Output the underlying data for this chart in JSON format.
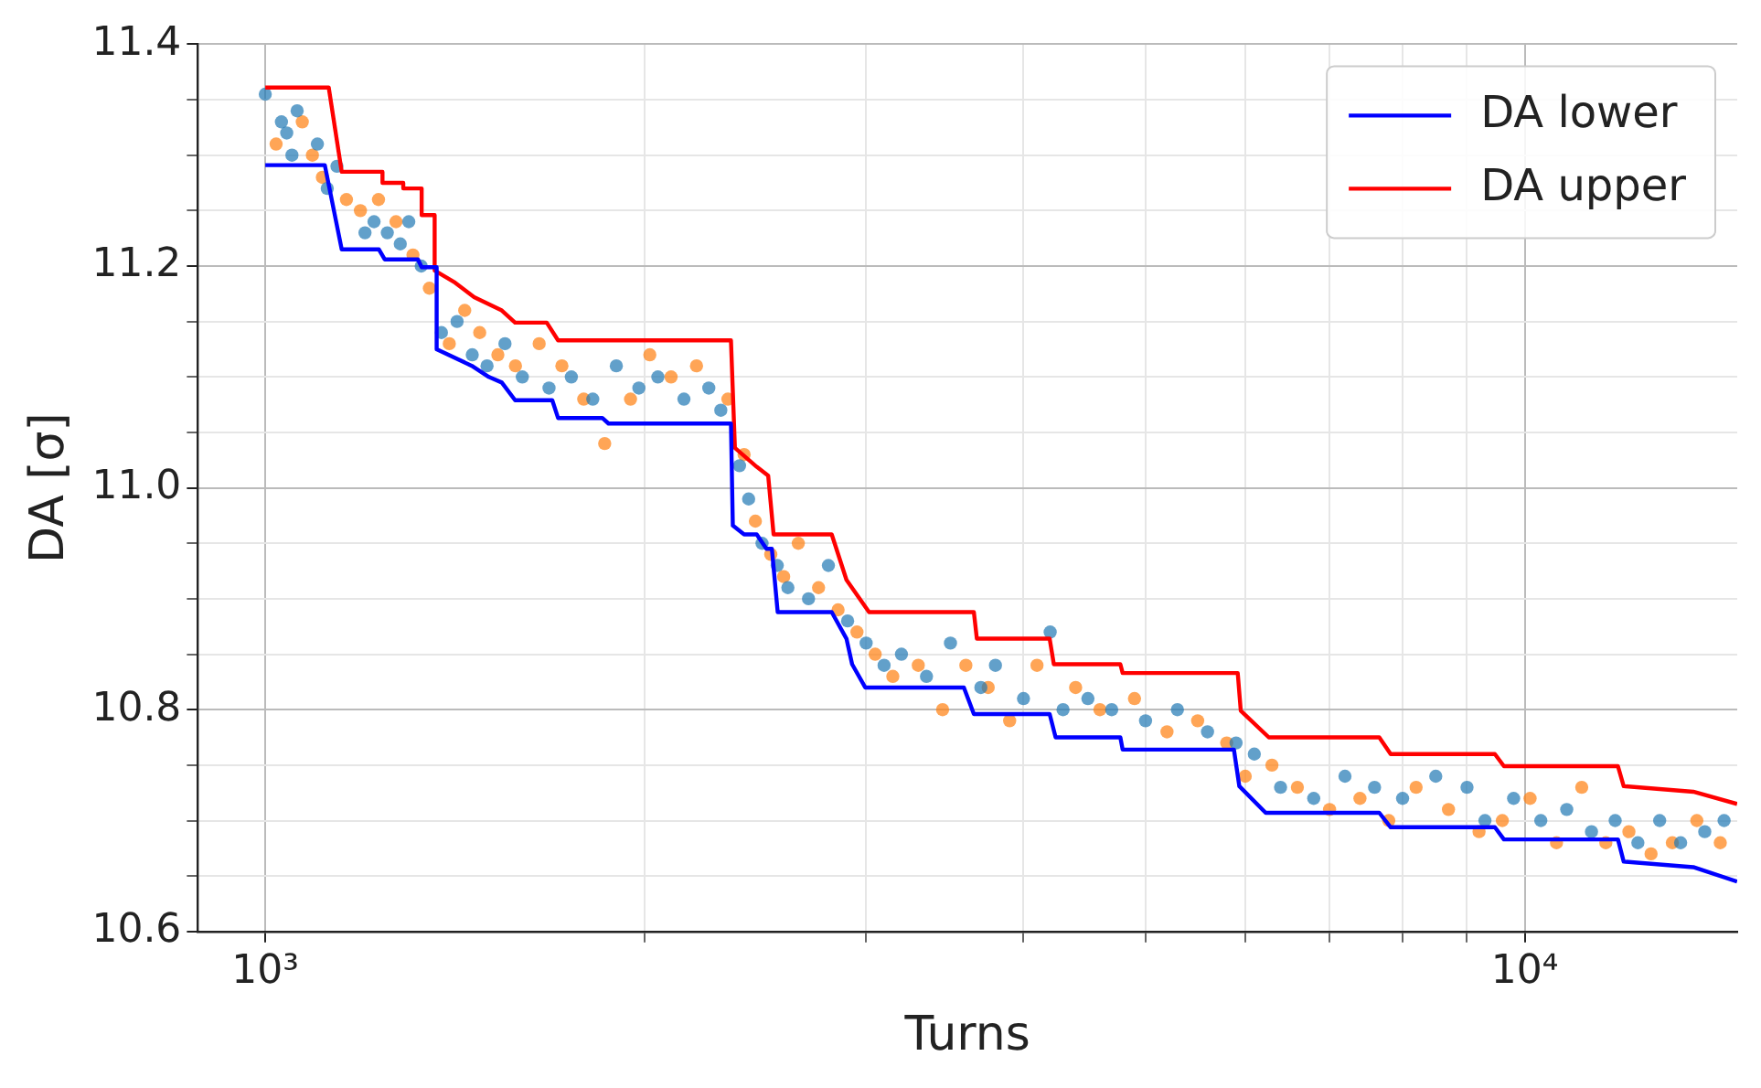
{
  "chart_data": {
    "type": "line",
    "xlabel": "Turns",
    "ylabel": "DA [σ]",
    "xlim": [
      884,
      14750
    ],
    "ylim": [
      10.6,
      11.4
    ],
    "xticks": [
      {
        "value": 1000,
        "label": "10³"
      },
      {
        "value": 2000,
        "label": null
      },
      {
        "value": 3000,
        "label": null
      },
      {
        "value": 4000,
        "label": null
      },
      {
        "value": 5000,
        "label": null
      },
      {
        "value": 6000,
        "label": null
      },
      {
        "value": 7000,
        "label": null
      },
      {
        "value": 8000,
        "label": null
      },
      {
        "value": 9000,
        "label": null
      },
      {
        "value": 10000,
        "label": "10⁴"
      }
    ],
    "yticks": [
      {
        "value": 10.6,
        "label": "10.6"
      },
      {
        "value": 10.65,
        "label": null
      },
      {
        "value": 10.7,
        "label": null
      },
      {
        "value": 10.75,
        "label": null
      },
      {
        "value": 10.8,
        "label": "10.8"
      },
      {
        "value": 10.85,
        "label": null
      },
      {
        "value": 10.9,
        "label": null
      },
      {
        "value": 10.95,
        "label": null
      },
      {
        "value": 11.0,
        "label": "11.0"
      },
      {
        "value": 11.05,
        "label": null
      },
      {
        "value": 11.1,
        "label": null
      },
      {
        "value": 11.15,
        "label": null
      },
      {
        "value": 11.2,
        "label": "11.2"
      },
      {
        "value": 11.25,
        "label": null
      },
      {
        "value": 11.3,
        "label": null
      },
      {
        "value": 11.35,
        "label": null
      },
      {
        "value": 11.4,
        "label": "11.4"
      }
    ],
    "log": "x",
    "grid": true,
    "legend": "top right",
    "marker": "none",
    "line_style": "solid",
    "series": [
      {
        "type": "scatter",
        "marker": "circle",
        "color": "#1f77b4",
        "x": [
          1000,
          1030,
          1050,
          1060,
          1040,
          1100,
          1120,
          1140,
          1200,
          1220,
          1250,
          1280,
          1300,
          1330,
          1380,
          1420,
          1460,
          1500,
          1550,
          1600,
          1680,
          1750,
          1820,
          1900,
          1980,
          2050,
          2150,
          2250,
          2300,
          2380,
          2420,
          2480,
          2550,
          2600,
          2700,
          2800,
          2900,
          3000,
          3100,
          3200,
          3350,
          3500,
          3700,
          3800,
          4000,
          4200,
          4300,
          4500,
          4700,
          5000,
          5300,
          5600,
          5900,
          6100,
          6400,
          6800,
          7200,
          7600,
          8000,
          8500,
          9000,
          9300,
          9800,
          10300,
          10800,
          11300,
          11800,
          12300,
          12800,
          13300,
          13900,
          14400
        ],
        "values": [
          11.355,
          11.33,
          11.3,
          11.34,
          11.32,
          11.31,
          11.27,
          11.29,
          11.23,
          11.24,
          11.23,
          11.22,
          11.24,
          11.2,
          11.14,
          11.15,
          11.12,
          11.11,
          11.13,
          11.1,
          11.09,
          11.1,
          11.08,
          11.11,
          11.09,
          11.1,
          11.08,
          11.09,
          11.07,
          11.02,
          10.99,
          10.95,
          10.93,
          10.91,
          10.9,
          10.93,
          10.88,
          10.86,
          10.84,
          10.85,
          10.83,
          10.86,
          10.82,
          10.84,
          10.81,
          10.87,
          10.8,
          10.81,
          10.8,
          10.79,
          10.8,
          10.78,
          10.77,
          10.76,
          10.73,
          10.72,
          10.74,
          10.73,
          10.72,
          10.74,
          10.73,
          10.7,
          10.72,
          10.7,
          10.71,
          10.69,
          10.7,
          10.68,
          10.7,
          10.68,
          10.69,
          10.7
        ]
      },
      {
        "type": "scatter",
        "marker": "circle",
        "color": "#ff7f0e",
        "x": [
          1020,
          1070,
          1090,
          1110,
          1160,
          1190,
          1230,
          1270,
          1310,
          1350,
          1400,
          1440,
          1480,
          1530,
          1580,
          1650,
          1720,
          1790,
          1860,
          1950,
          2020,
          2100,
          2200,
          2330,
          2400,
          2450,
          2520,
          2580,
          2650,
          2750,
          2850,
          2950,
          3050,
          3150,
          3300,
          3450,
          3600,
          3750,
          3900,
          4100,
          4400,
          4600,
          4900,
          5200,
          5500,
          5800,
          6000,
          6300,
          6600,
          7000,
          7400,
          7800,
          8200,
          8700,
          9200,
          9600,
          10100,
          10600,
          11100,
          11600,
          12100,
          12600,
          13100,
          13700,
          14300
        ],
        "values": [
          11.31,
          11.33,
          11.3,
          11.28,
          11.26,
          11.25,
          11.26,
          11.24,
          11.21,
          11.18,
          11.13,
          11.16,
          11.14,
          11.12,
          11.11,
          11.13,
          11.11,
          11.08,
          11.04,
          11.08,
          11.12,
          11.1,
          11.11,
          11.08,
          11.03,
          10.97,
          10.94,
          10.92,
          10.95,
          10.91,
          10.89,
          10.87,
          10.85,
          10.83,
          10.84,
          10.8,
          10.84,
          10.82,
          10.79,
          10.84,
          10.82,
          10.8,
          10.81,
          10.78,
          10.79,
          10.77,
          10.74,
          10.75,
          10.73,
          10.71,
          10.72,
          10.7,
          10.73,
          10.71,
          10.69,
          10.7,
          10.72,
          10.68,
          10.73,
          10.68,
          10.69,
          10.67,
          10.68,
          10.7,
          10.68
        ]
      },
      {
        "name": "DA lower",
        "color": "#0000ff",
        "x": [
          1000,
          1115,
          1150,
          1231,
          1244,
          1322,
          1331,
          1368,
          1368,
          1459,
          1505,
          1541,
          1579,
          1690,
          1708,
          1852,
          1873,
          2343,
          2351,
          2400,
          2456,
          2500,
          2525,
          2552,
          2817,
          2894,
          2924,
          2995,
          3587,
          3653,
          4196,
          4242,
          4775,
          4795,
          5877,
          5935,
          6228,
          7666,
          7827,
          9470,
          9628,
          11860,
          11985,
          13612,
          14746
        ],
        "values": [
          11.291,
          11.291,
          11.215,
          11.215,
          11.206,
          11.206,
          11.199,
          11.199,
          11.125,
          11.11,
          11.1,
          11.095,
          11.079,
          11.079,
          11.063,
          11.063,
          11.058,
          11.058,
          10.966,
          10.958,
          10.958,
          10.945,
          10.945,
          10.888,
          10.888,
          10.864,
          10.841,
          10.82,
          10.82,
          10.796,
          10.796,
          10.775,
          10.775,
          10.764,
          10.764,
          10.731,
          10.707,
          10.707,
          10.694,
          10.694,
          10.683,
          10.683,
          10.663,
          10.658,
          10.645
        ]
      },
      {
        "name": "DA upper",
        "color": "#ff0000",
        "x": [
          1000,
          1123,
          1150,
          1239,
          1239,
          1287,
          1287,
          1331,
          1331,
          1363,
          1363,
          1415,
          1465,
          1541,
          1579,
          1673,
          1708,
          2343,
          2360,
          2456,
          2508,
          2533,
          2817,
          2894,
          3016,
          3653,
          3673,
          4196,
          4228,
          4775,
          4795,
          5918,
          5951,
          6264,
          7666,
          7827,
          9470,
          9628,
          11860,
          11985,
          13612,
          14746
        ],
        "values": [
          11.361,
          11.361,
          11.285,
          11.285,
          11.275,
          11.275,
          11.27,
          11.27,
          11.246,
          11.246,
          11.196,
          11.185,
          11.172,
          11.16,
          11.149,
          11.149,
          11.133,
          11.133,
          11.036,
          11.019,
          11.011,
          10.958,
          10.958,
          10.917,
          10.888,
          10.888,
          10.864,
          10.864,
          10.841,
          10.841,
          10.833,
          10.833,
          10.799,
          10.775,
          10.775,
          10.76,
          10.76,
          10.749,
          10.749,
          10.731,
          10.726,
          10.715
        ]
      }
    ]
  }
}
